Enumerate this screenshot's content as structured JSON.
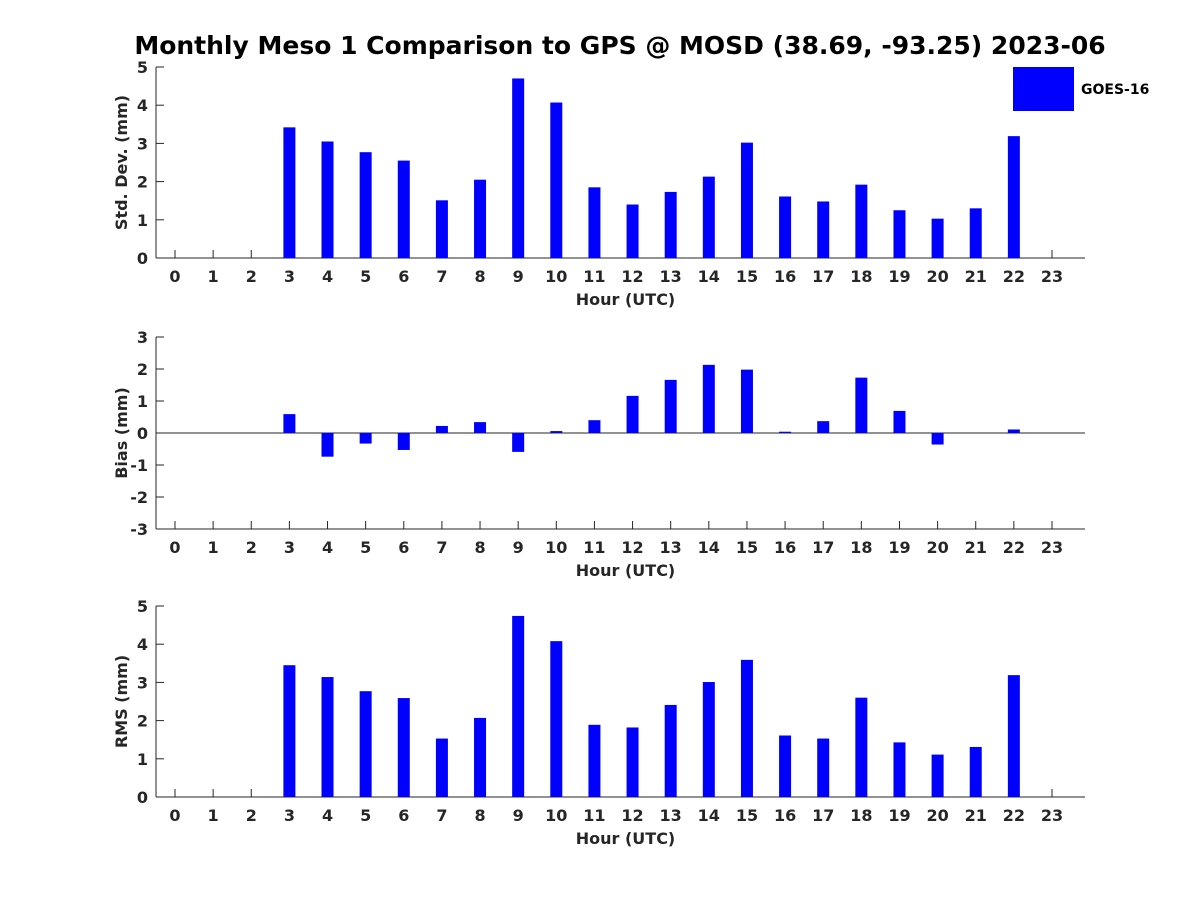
{
  "chart_data": [
    {
      "type": "bar",
      "title": "Monthly Meso 1 Comparison to GPS @ MOSD (38.69, -93.25) 2023-06",
      "xlabel": "Hour (UTC)",
      "ylabel": "Std. Dev. (mm)",
      "categories": [
        "0",
        "1",
        "2",
        "3",
        "4",
        "5",
        "6",
        "7",
        "8",
        "9",
        "10",
        "11",
        "12",
        "13",
        "14",
        "15",
        "16",
        "17",
        "18",
        "19",
        "20",
        "21",
        "22",
        "23"
      ],
      "series": [
        {
          "name": "GOES-16",
          "color": "#0000ff",
          "values": [
            null,
            null,
            null,
            3.42,
            3.05,
            2.77,
            2.55,
            1.51,
            2.05,
            4.7,
            4.07,
            1.85,
            1.4,
            1.73,
            2.13,
            3.02,
            1.61,
            1.48,
            1.92,
            1.25,
            1.03,
            1.3,
            3.19,
            null
          ]
        }
      ],
      "ylim": [
        0,
        5
      ],
      "yticks": [
        0,
        1,
        2,
        3,
        4,
        5
      ],
      "legend": "top-right",
      "grid": false
    },
    {
      "type": "bar",
      "xlabel": "Hour (UTC)",
      "ylabel": "Bias (mm)",
      "categories": [
        "0",
        "1",
        "2",
        "3",
        "4",
        "5",
        "6",
        "7",
        "8",
        "9",
        "10",
        "11",
        "12",
        "13",
        "14",
        "15",
        "16",
        "17",
        "18",
        "19",
        "20",
        "21",
        "22",
        "23"
      ],
      "series": [
        {
          "color": "#0000ff",
          "values": [
            null,
            null,
            null,
            0.59,
            -0.74,
            -0.33,
            -0.53,
            0.22,
            0.34,
            -0.59,
            0.06,
            0.4,
            1.16,
            1.66,
            2.13,
            1.98,
            0.04,
            0.37,
            1.73,
            0.69,
            -0.36,
            null,
            0.11,
            null
          ]
        }
      ],
      "ylim": [
        -3,
        3
      ],
      "yticks": [
        -3,
        -2,
        -1,
        0,
        1,
        2,
        3
      ],
      "grid": false
    },
    {
      "type": "bar",
      "xlabel": "Hour (UTC)",
      "ylabel": "RMS (mm)",
      "categories": [
        "0",
        "1",
        "2",
        "3",
        "4",
        "5",
        "6",
        "7",
        "8",
        "9",
        "10",
        "11",
        "12",
        "13",
        "14",
        "15",
        "16",
        "17",
        "18",
        "19",
        "20",
        "21",
        "22",
        "23"
      ],
      "series": [
        {
          "color": "#0000ff",
          "values": [
            null,
            null,
            null,
            3.45,
            3.14,
            2.77,
            2.59,
            1.53,
            2.07,
            4.74,
            4.08,
            1.89,
            1.82,
            2.41,
            3.01,
            3.59,
            1.61,
            1.53,
            2.6,
            1.43,
            1.11,
            1.31,
            3.19,
            null
          ]
        }
      ],
      "ylim": [
        0,
        5
      ],
      "yticks": [
        0,
        1,
        2,
        3,
        4,
        5
      ],
      "grid": false
    }
  ]
}
